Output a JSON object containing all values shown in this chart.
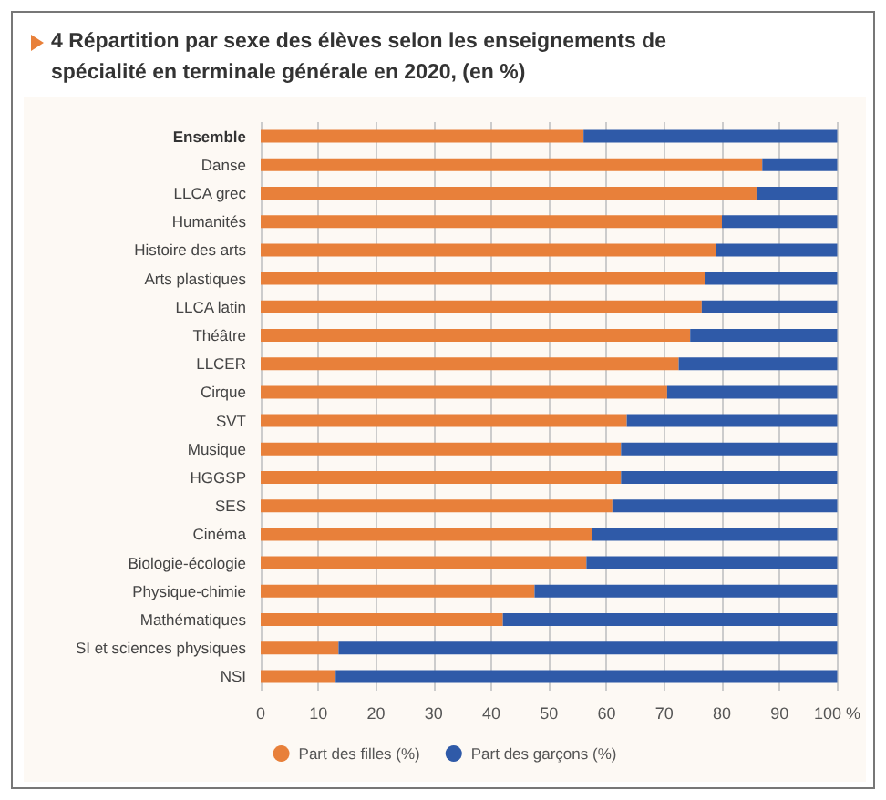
{
  "chart_data": {
    "type": "bar",
    "orientation": "horizontal",
    "stacked": true,
    "title": "4 Répartition par sexe des élèves selon les enseignements de spécialité en terminale générale en 2020, (en %)",
    "categories": [
      "Ensemble",
      "Danse",
      "LLCA grec",
      "Humanités",
      "Histoire des arts",
      "Arts plastiques",
      "LLCA latin",
      "Théâtre",
      "LLCER",
      "Cirque",
      "SVT",
      "Musique",
      "HGGSP",
      "SES",
      "Cinéma",
      "Biologie-écologie",
      "Physique-chimie",
      "Mathématiques",
      "SI et sciences physiques",
      "NSI"
    ],
    "series": [
      {
        "name": "Part des filles (%)",
        "color": "#e8803a",
        "values": [
          56,
          87,
          86,
          80,
          79,
          77,
          76.5,
          74.5,
          72.5,
          70.5,
          63.5,
          62.5,
          62.5,
          61,
          57.5,
          56.5,
          47.5,
          42,
          13.5,
          13
        ]
      },
      {
        "name": "Part des garçons (%)",
        "color": "#2f5aa8",
        "values": [
          44,
          13,
          14,
          20,
          21,
          23,
          23.5,
          25.5,
          27.5,
          29.5,
          36.5,
          37.5,
          37.5,
          39,
          42.5,
          43.5,
          52.5,
          58,
          86.5,
          87
        ]
      }
    ],
    "xlim": [
      0,
      100
    ],
    "xticks": [
      0,
      10,
      20,
      30,
      40,
      50,
      60,
      70,
      80,
      90,
      {
        "value": 100,
        "label": "100 %"
      }
    ],
    "grid": "x",
    "legend": "bottom"
  }
}
